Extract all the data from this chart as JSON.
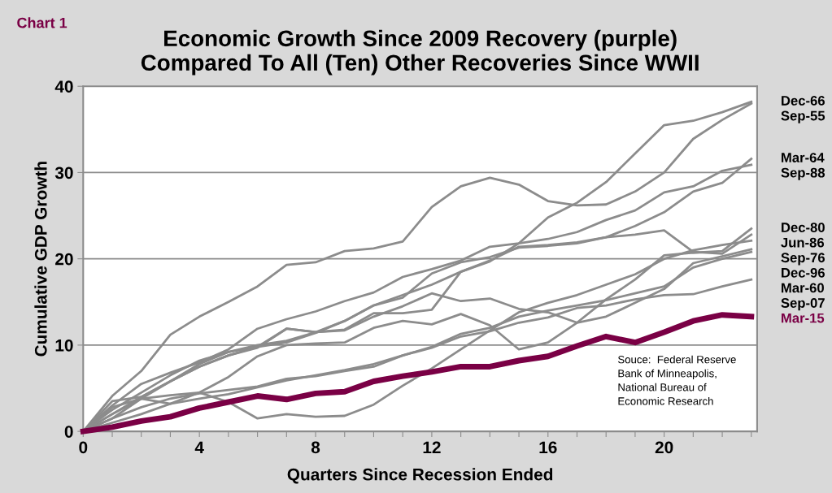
{
  "chart_data": {
    "type": "line",
    "title": "Economic Growth Since 2009 Recovery (purple)\nCompared To All (Ten) Other Recoveries Since WWII",
    "xlabel": "Quarters Since Recession Ended",
    "ylabel": "Cumulative GDP Growth",
    "annotations": [
      "Chart 1",
      "Souce:  Federal Reserve\nBank of Minneapolis,\nNational Bureau of\nEconomic Research"
    ],
    "x": [
      0,
      1,
      2,
      3,
      4,
      5,
      6,
      7,
      8,
      9,
      10,
      11,
      12,
      13,
      14,
      15,
      16,
      17,
      18,
      19,
      20,
      21,
      22,
      23
    ],
    "xlim": [
      0,
      23.2
    ],
    "xticks": [
      0,
      {
        "value": 1,
        "label": null
      },
      {
        "value": 2,
        "label": null
      },
      {
        "value": 3,
        "label": null
      },
      4,
      {
        "value": 5,
        "label": null
      },
      {
        "value": 6,
        "label": null
      },
      {
        "value": 7,
        "label": null
      },
      8,
      {
        "value": 9,
        "label": null
      },
      {
        "value": 10,
        "label": null
      },
      {
        "value": 11,
        "label": null
      },
      12,
      {
        "value": 13,
        "label": null
      },
      {
        "value": 14,
        "label": null
      },
      {
        "value": 15,
        "label": null
      },
      16,
      {
        "value": 17,
        "label": null
      },
      {
        "value": 18,
        "label": null
      },
      {
        "value": 19,
        "label": null
      },
      20,
      {
        "value": 21,
        "label": null
      },
      {
        "value": 22,
        "label": null
      },
      {
        "value": 23,
        "label": null
      }
    ],
    "ylim": [
      0,
      40
    ],
    "yticks": [
      0,
      10,
      20,
      30,
      40
    ],
    "grid": "y",
    "legend": false,
    "marker": "none",
    "line_style": "solid",
    "series": [
      {
        "name": "Dec-66",
        "color": "#8c8c8c",
        "values": [
          0,
          2.5,
          4.5,
          6.5,
          8.2,
          9.2,
          10,
          10.5,
          11.5,
          12.8,
          14.6,
          15.8,
          17,
          18.5,
          19.7,
          21.8,
          24.8,
          26.5,
          28.9,
          32.2,
          35.5,
          36.0,
          37.0,
          38.2
        ]
      },
      {
        "name": "Sep-55",
        "color": "#8c8c8c",
        "values": [
          0,
          4.1,
          7.0,
          11.2,
          13.3,
          15.0,
          16.8,
          19.3,
          19.6,
          20.9,
          21.2,
          22.0,
          26.0,
          28.4,
          29.4,
          28.6,
          26.7,
          26.2,
          26.3,
          27.8,
          30.0,
          33.9,
          36.1,
          38.0
        ]
      },
      {
        "name": "Mar-64",
        "color": "#8c8c8c",
        "values": [
          0,
          2,
          4,
          5.8,
          7.5,
          8.8,
          9.8,
          10.3,
          11.4,
          12.8,
          14.6,
          15.5,
          18.3,
          19.6,
          20.2,
          21.3,
          21.5,
          21.8,
          22.5,
          23.8,
          25.4,
          27.8,
          28.8,
          31.6
        ]
      },
      {
        "name": "Sep-88",
        "color": "#8c8c8c",
        "values": [
          0,
          3,
          5.5,
          6.8,
          8,
          9.5,
          11.9,
          13,
          13.9,
          15.1,
          16.1,
          17.9,
          18.8,
          19.8,
          21.4,
          21.8,
          22.3,
          23.1,
          24.5,
          25.6,
          27.7,
          28.4,
          30.2,
          30.9
        ]
      },
      {
        "name": "Dec-80",
        "color": "#8c8c8c",
        "values": [
          0,
          2,
          3.8,
          3.2,
          4.5,
          6.3,
          8.7,
          10,
          10.2,
          10.3,
          12,
          12.8,
          12.4,
          13.6,
          12.3,
          9.5,
          10.3,
          12.6,
          15.3,
          17.6,
          20.4,
          20.7,
          20.9,
          23.5
        ]
      },
      {
        "name": "Jun-86",
        "color": "#8c8c8c",
        "values": [
          0,
          3.5,
          4,
          5.8,
          7.8,
          9.2,
          9.8,
          11.9,
          11.5,
          11.8,
          13.7,
          13.7,
          14.1,
          18.5,
          19.8,
          21.4,
          21.6,
          21.9,
          22.5,
          22.8,
          23.3,
          20.8,
          20.6,
          22.8
        ]
      },
      {
        "name": "Sep-76",
        "color": "#8c8c8c",
        "values": [
          0,
          1.5,
          3.8,
          4.2,
          4.5,
          3.4,
          1.5,
          2,
          1.7,
          1.8,
          3.1,
          5.3,
          7.3,
          9.5,
          11.7,
          13.8,
          14.9,
          15.8,
          17,
          18.2,
          20,
          21,
          21.6,
          22.1
        ]
      },
      {
        "name": "Dec-96",
        "color": "#8c8c8c",
        "values": [
          0,
          2.8,
          3.8,
          5.8,
          7.5,
          8.8,
          9.7,
          11.9,
          11.5,
          11.7,
          13.3,
          14.5,
          16.0,
          15.1,
          15.4,
          14.2,
          13.8,
          12.6,
          13.3,
          14.9,
          16.5,
          19.5,
          20.3,
          21.1
        ]
      },
      {
        "name": "Mar-60",
        "color": "#8c8c8c",
        "values": [
          0,
          1,
          2,
          3.2,
          3.8,
          4.3,
          5.1,
          5.9,
          6.5,
          7.1,
          7.8,
          8.8,
          9.8,
          11.3,
          12,
          13.3,
          14,
          14.6,
          15.2,
          16,
          16.8,
          19,
          20,
          20.8
        ]
      },
      {
        "name": "Sep-07",
        "color": "#8c8c8c",
        "values": [
          0,
          1.5,
          2.8,
          3.8,
          4.4,
          4.8,
          5.2,
          6.1,
          6.4,
          7,
          7.5,
          8.8,
          9.7,
          11,
          11.6,
          12.6,
          13.2,
          14.3,
          14.6,
          15.3,
          15.8,
          15.9,
          16.8,
          17.6
        ]
      },
      {
        "name": "Mar-15",
        "color": "#7a0045",
        "values": [
          0,
          0.5,
          1.2,
          1.7,
          2.7,
          3.4,
          4.1,
          3.7,
          4.4,
          4.6,
          5.8,
          6.4,
          6.9,
          7.5,
          7.5,
          8.2,
          8.7,
          9.9,
          11.0,
          10.3,
          11.5,
          12.8,
          13.5,
          13.3
        ]
      }
    ]
  }
}
